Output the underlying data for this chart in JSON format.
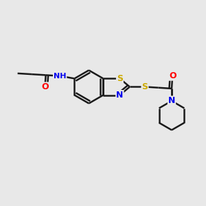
{
  "bg_color": "#e8e8e8",
  "bond_color": "#1a1a1a",
  "bond_width": 1.8,
  "atom_colors": {
    "S": "#ccaa00",
    "N": "#0000ee",
    "O": "#ff0000",
    "H": "#008080",
    "C": "#1a1a1a"
  },
  "font_size": 9,
  "fig_size": [
    3.0,
    3.0
  ],
  "dpi": 100,
  "xlim": [
    0,
    10
  ],
  "ylim": [
    0,
    10
  ]
}
